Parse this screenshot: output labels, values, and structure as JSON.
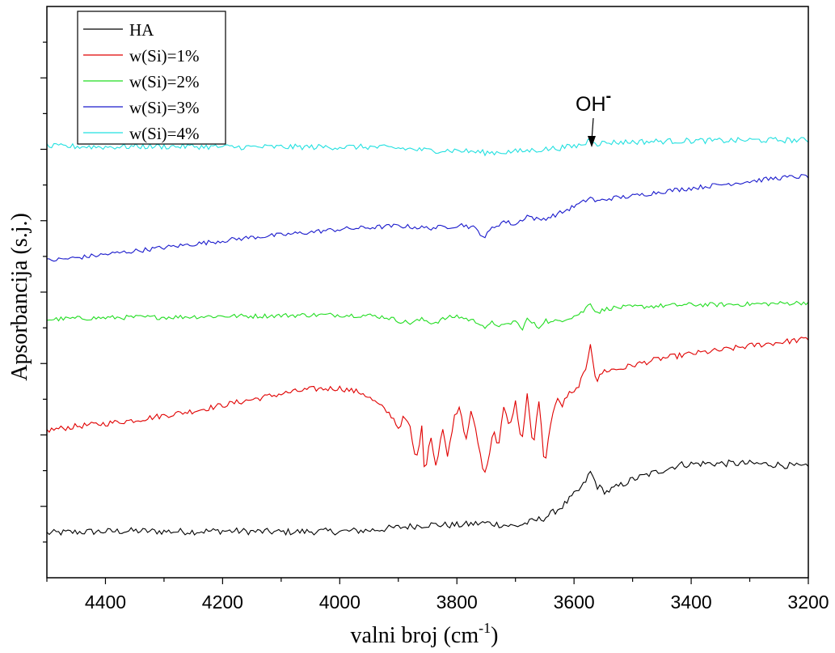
{
  "chart_data": {
    "type": "line",
    "title": "",
    "xlabel": "valni broj (cm",
    "xlabel_sup": "-1",
    "xlabel_tail": ")",
    "ylabel": "Apsorbancija (s.j.)",
    "xlim": [
      4500,
      3200
    ],
    "x_reversed": true,
    "ylim": [
      0,
      1
    ],
    "y_ticks_labeled": false,
    "x_ticks": [
      4400,
      4200,
      4000,
      3800,
      3600,
      3400,
      3200
    ],
    "x_tick_labels": [
      "4400",
      "4200",
      "4000",
      "3800",
      "3600",
      "3400",
      "3200"
    ],
    "grid": false,
    "legend_position": "top-left",
    "annotation": {
      "text": "OH",
      "sup": "-",
      "x": 3570
    },
    "series": [
      {
        "name": "HA",
        "color": "#000000",
        "points": [
          [
            4500,
            0.078
          ],
          [
            4450,
            0.08
          ],
          [
            4400,
            0.081
          ],
          [
            4350,
            0.082
          ],
          [
            4300,
            0.081
          ],
          [
            4250,
            0.081
          ],
          [
            4200,
            0.082
          ],
          [
            4150,
            0.081
          ],
          [
            4100,
            0.08
          ],
          [
            4050,
            0.081
          ],
          [
            4000,
            0.081
          ],
          [
            3950,
            0.083
          ],
          [
            3900,
            0.088
          ],
          [
            3850,
            0.093
          ],
          [
            3800,
            0.092
          ],
          [
            3750,
            0.096
          ],
          [
            3700,
            0.09
          ],
          [
            3650,
            0.105
          ],
          [
            3620,
            0.125
          ],
          [
            3600,
            0.145
          ],
          [
            3585,
            0.16
          ],
          [
            3572,
            0.185
          ],
          [
            3560,
            0.16
          ],
          [
            3545,
            0.15
          ],
          [
            3520,
            0.162
          ],
          [
            3500,
            0.172
          ],
          [
            3450,
            0.188
          ],
          [
            3420,
            0.198
          ],
          [
            3380,
            0.2
          ],
          [
            3350,
            0.2
          ],
          [
            3300,
            0.2
          ],
          [
            3250,
            0.198
          ],
          [
            3200,
            0.193
          ]
        ],
        "noise": 0.006
      },
      {
        "name": "w(Si)=1%",
        "color": "#e00000",
        "points": [
          [
            4500,
            0.258
          ],
          [
            4450,
            0.265
          ],
          [
            4400,
            0.27
          ],
          [
            4350,
            0.276
          ],
          [
            4300,
            0.284
          ],
          [
            4250,
            0.292
          ],
          [
            4200,
            0.302
          ],
          [
            4150,
            0.312
          ],
          [
            4100,
            0.322
          ],
          [
            4050,
            0.33
          ],
          [
            4000,
            0.332
          ],
          [
            3960,
            0.323
          ],
          [
            3930,
            0.3
          ],
          [
            3910,
            0.282
          ],
          [
            3900,
            0.262
          ],
          [
            3890,
            0.282
          ],
          [
            3880,
            0.262
          ],
          [
            3870,
            0.202
          ],
          [
            3860,
            0.262
          ],
          [
            3855,
            0.182
          ],
          [
            3845,
            0.252
          ],
          [
            3835,
            0.192
          ],
          [
            3825,
            0.262
          ],
          [
            3815,
            0.212
          ],
          [
            3805,
            0.282
          ],
          [
            3795,
            0.302
          ],
          [
            3785,
            0.242
          ],
          [
            3775,
            0.292
          ],
          [
            3765,
            0.242
          ],
          [
            3758,
            0.202
          ],
          [
            3752,
            0.182
          ],
          [
            3745,
            0.212
          ],
          [
            3738,
            0.262
          ],
          [
            3730,
            0.222
          ],
          [
            3720,
            0.302
          ],
          [
            3710,
            0.262
          ],
          [
            3700,
            0.312
          ],
          [
            3690,
            0.232
          ],
          [
            3680,
            0.322
          ],
          [
            3670,
            0.222
          ],
          [
            3660,
            0.312
          ],
          [
            3650,
            0.192
          ],
          [
            3640,
            0.272
          ],
          [
            3630,
            0.312
          ],
          [
            3620,
            0.302
          ],
          [
            3610,
            0.322
          ],
          [
            3600,
            0.322
          ],
          [
            3590,
            0.342
          ],
          [
            3580,
            0.362
          ],
          [
            3572,
            0.412
          ],
          [
            3562,
            0.342
          ],
          [
            3550,
            0.362
          ],
          [
            3520,
            0.366
          ],
          [
            3500,
            0.372
          ],
          [
            3450,
            0.384
          ],
          [
            3400,
            0.392
          ],
          [
            3350,
            0.398
          ],
          [
            3300,
            0.406
          ],
          [
            3250,
            0.412
          ],
          [
            3200,
            0.418
          ]
        ],
        "noise": 0.005
      },
      {
        "name": "w(Si)=2%",
        "color": "#22dd22",
        "points": [
          [
            4500,
            0.452
          ],
          [
            4450,
            0.454
          ],
          [
            4400,
            0.455
          ],
          [
            4350,
            0.456
          ],
          [
            4300,
            0.456
          ],
          [
            4250,
            0.457
          ],
          [
            4200,
            0.458
          ],
          [
            4150,
            0.458
          ],
          [
            4100,
            0.459
          ],
          [
            4050,
            0.46
          ],
          [
            4000,
            0.46
          ],
          [
            3950,
            0.459
          ],
          [
            3920,
            0.456
          ],
          [
            3900,
            0.45
          ],
          [
            3880,
            0.446
          ],
          [
            3860,
            0.452
          ],
          [
            3840,
            0.446
          ],
          [
            3820,
            0.454
          ],
          [
            3800,
            0.458
          ],
          [
            3780,
            0.452
          ],
          [
            3760,
            0.446
          ],
          [
            3750,
            0.436
          ],
          [
            3740,
            0.446
          ],
          [
            3720,
            0.44
          ],
          [
            3700,
            0.45
          ],
          [
            3690,
            0.434
          ],
          [
            3680,
            0.452
          ],
          [
            3660,
            0.438
          ],
          [
            3650,
            0.452
          ],
          [
            3640,
            0.446
          ],
          [
            3620,
            0.452
          ],
          [
            3600,
            0.458
          ],
          [
            3585,
            0.465
          ],
          [
            3572,
            0.482
          ],
          [
            3562,
            0.464
          ],
          [
            3540,
            0.472
          ],
          [
            3500,
            0.474
          ],
          [
            3450,
            0.476
          ],
          [
            3400,
            0.478
          ],
          [
            3350,
            0.478
          ],
          [
            3300,
            0.479
          ],
          [
            3250,
            0.48
          ],
          [
            3200,
            0.482
          ]
        ],
        "noise": 0.004
      },
      {
        "name": "w(Si)=3%",
        "color": "#1a1acc",
        "points": [
          [
            4500,
            0.555
          ],
          [
            4450,
            0.56
          ],
          [
            4400,
            0.566
          ],
          [
            4350,
            0.572
          ],
          [
            4300,
            0.578
          ],
          [
            4250,
            0.584
          ],
          [
            4200,
            0.59
          ],
          [
            4150,
            0.596
          ],
          [
            4100,
            0.6
          ],
          [
            4050,
            0.605
          ],
          [
            4000,
            0.61
          ],
          [
            3950,
            0.613
          ],
          [
            3900,
            0.616
          ],
          [
            3850,
            0.612
          ],
          [
            3820,
            0.614
          ],
          [
            3790,
            0.618
          ],
          [
            3770,
            0.612
          ],
          [
            3752,
            0.596
          ],
          [
            3740,
            0.612
          ],
          [
            3720,
            0.624
          ],
          [
            3700,
            0.618
          ],
          [
            3680,
            0.634
          ],
          [
            3660,
            0.626
          ],
          [
            3640,
            0.632
          ],
          [
            3620,
            0.64
          ],
          [
            3600,
            0.65
          ],
          [
            3585,
            0.657
          ],
          [
            3572,
            0.666
          ],
          [
            3562,
            0.658
          ],
          [
            3540,
            0.664
          ],
          [
            3500,
            0.668
          ],
          [
            3450,
            0.676
          ],
          [
            3400,
            0.682
          ],
          [
            3350,
            0.688
          ],
          [
            3300,
            0.694
          ],
          [
            3250,
            0.7
          ],
          [
            3200,
            0.703
          ]
        ],
        "noise": 0.004
      },
      {
        "name": "w(Si)=4%",
        "color": "#22e0e0",
        "points": [
          [
            4500,
            0.755
          ],
          [
            4450,
            0.755
          ],
          [
            4400,
            0.754
          ],
          [
            4350,
            0.755
          ],
          [
            4300,
            0.755
          ],
          [
            4250,
            0.755
          ],
          [
            4200,
            0.754
          ],
          [
            4150,
            0.754
          ],
          [
            4100,
            0.754
          ],
          [
            4050,
            0.754
          ],
          [
            4000,
            0.754
          ],
          [
            3950,
            0.754
          ],
          [
            3900,
            0.752
          ],
          [
            3850,
            0.748
          ],
          [
            3800,
            0.748
          ],
          [
            3750,
            0.744
          ],
          [
            3700,
            0.746
          ],
          [
            3650,
            0.75
          ],
          [
            3600,
            0.755
          ],
          [
            3580,
            0.76
          ],
          [
            3572,
            0.77
          ],
          [
            3560,
            0.76
          ],
          [
            3540,
            0.762
          ],
          [
            3500,
            0.763
          ],
          [
            3450,
            0.764
          ],
          [
            3400,
            0.765
          ],
          [
            3350,
            0.765
          ],
          [
            3300,
            0.766
          ],
          [
            3250,
            0.766
          ],
          [
            3200,
            0.766
          ]
        ],
        "noise": 0.005
      }
    ]
  }
}
